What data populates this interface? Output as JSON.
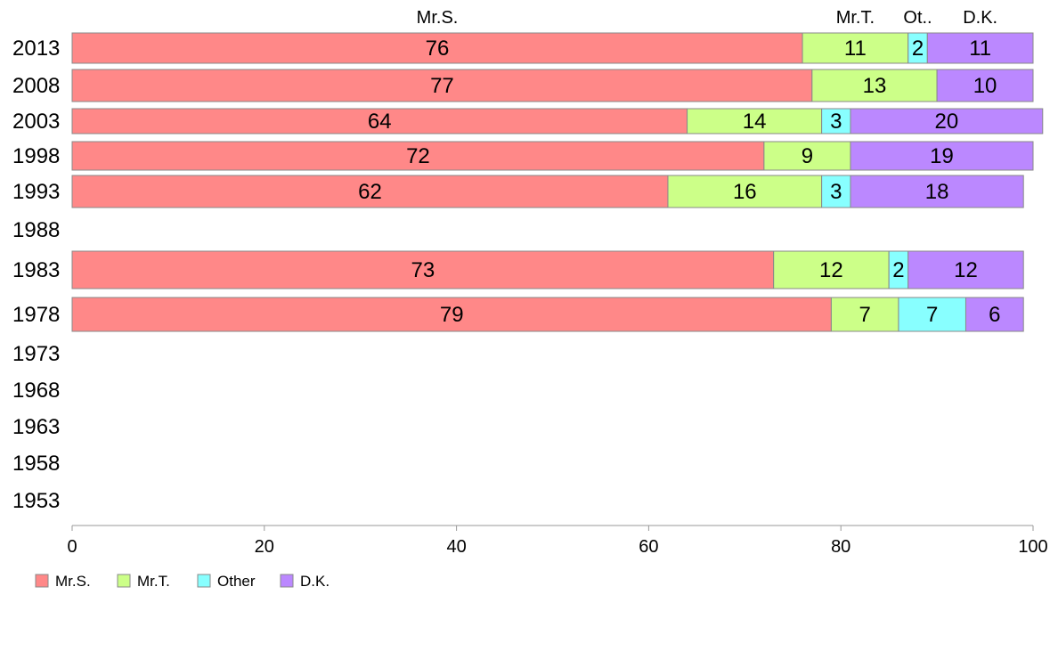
{
  "chart_data": {
    "type": "bar",
    "orientation": "horizontal",
    "stacked": true,
    "categories": [
      "2013",
      "2008",
      "2003",
      "1998",
      "1993",
      "1988",
      "1983",
      "1978",
      "1973",
      "1968",
      "1963",
      "1958",
      "1953"
    ],
    "series": [
      {
        "name": "Mr.S.",
        "color": "#ff8888",
        "values": [
          76,
          77,
          64,
          72,
          62,
          null,
          73,
          79,
          null,
          null,
          null,
          null,
          null
        ]
      },
      {
        "name": "Mr.T.",
        "color": "#ccff88",
        "values": [
          11,
          13,
          14,
          9,
          16,
          null,
          12,
          7,
          null,
          null,
          null,
          null,
          null
        ]
      },
      {
        "name": "Other",
        "color": "#88ffff",
        "values": [
          2,
          0,
          3,
          0,
          3,
          null,
          2,
          7,
          null,
          null,
          null,
          null,
          null
        ]
      },
      {
        "name": "D.K.",
        "color": "#bb88ff",
        "values": [
          11,
          10,
          20,
          19,
          18,
          null,
          12,
          6,
          null,
          null,
          null,
          null,
          null
        ]
      }
    ],
    "top_labels": [
      "Mr.S.",
      "Mr.T.",
      "Ot..",
      "D.K."
    ],
    "xlim": [
      0,
      100
    ],
    "xticks": [
      0,
      20,
      40,
      60,
      80,
      100
    ],
    "title": "",
    "xlabel": "",
    "ylabel": "",
    "grid": false,
    "legend_position": "bottom-left"
  }
}
